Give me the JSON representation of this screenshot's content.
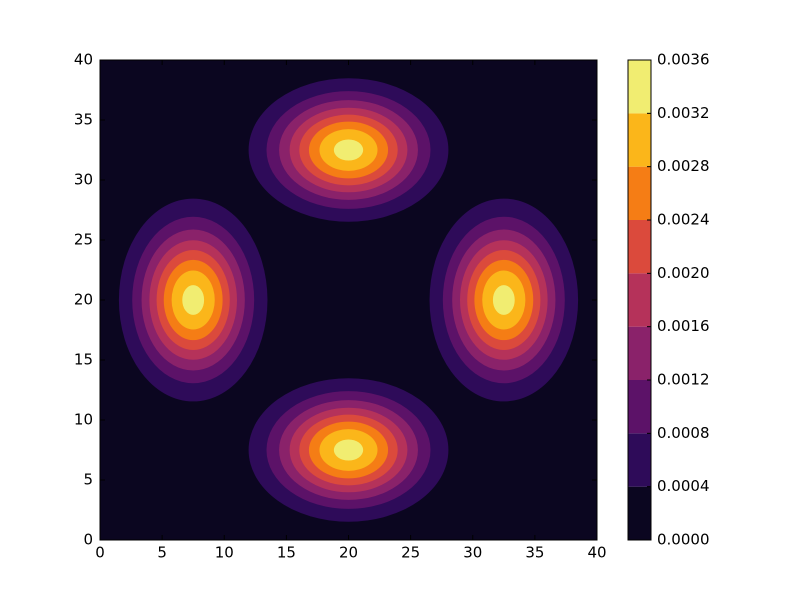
{
  "chart_data": {
    "type": "contour",
    "xlim": [
      0,
      40
    ],
    "ylim": [
      0,
      40
    ],
    "xticks": [
      0,
      5,
      10,
      15,
      20,
      25,
      30,
      35,
      40
    ],
    "yticks": [
      0,
      5,
      10,
      15,
      20,
      25,
      30,
      35,
      40
    ],
    "levels": [
      {
        "value": 0,
        "label": "0.0000"
      },
      {
        "value": 0.0004,
        "label": "0.0004"
      },
      {
        "value": 0.0008,
        "label": "0.0008"
      },
      {
        "value": 0.0012,
        "label": "0.0012"
      },
      {
        "value": 0.0016,
        "label": "0.0016"
      },
      {
        "value": 0.002,
        "label": "0.0020"
      },
      {
        "value": 0.0024,
        "label": "0.0024"
      },
      {
        "value": 0.0028,
        "label": "0.0028"
      },
      {
        "value": 0.0032,
        "label": "0.0032"
      },
      {
        "value": 0.0036,
        "label": "0.0036"
      }
    ],
    "colors": [
      "#0b0620",
      "#2e0b59",
      "#5c1268",
      "#8a226a",
      "#b5325a",
      "#db4a3c",
      "#f57d15",
      "#fbb61a",
      "#f1ed71"
    ],
    "sources": [
      {
        "x": 20,
        "y": 32.5,
        "peak": 0.00335,
        "sx": 3.9,
        "sy": 2.9
      },
      {
        "x": 7.5,
        "y": 20,
        "peak": 0.00335,
        "sx": 2.9,
        "sy": 4.1
      },
      {
        "x": 32.5,
        "y": 20,
        "peak": 0.00335,
        "sx": 2.9,
        "sy": 4.1
      },
      {
        "x": 20,
        "y": 7.5,
        "peak": 0.00335,
        "sx": 3.9,
        "sy": 2.9
      }
    ]
  }
}
